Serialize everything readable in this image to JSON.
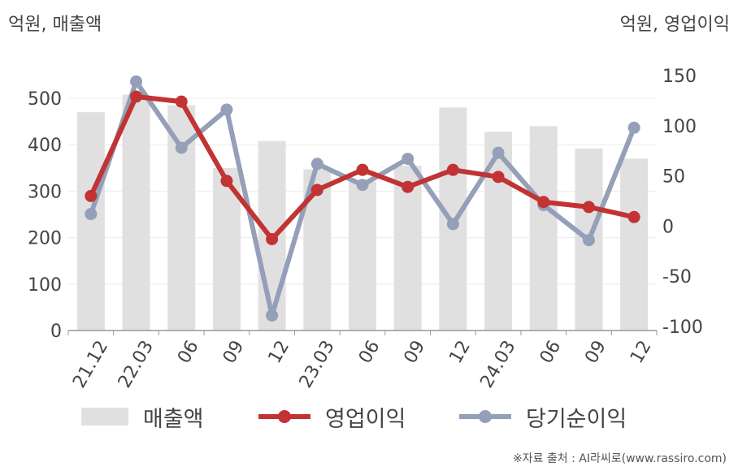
{
  "axis_unit_left": "억원, 매출액",
  "axis_unit_right": "억원, 영업이익",
  "source_note": "※자료 출처 : AI라씨로(www.rassiro.com)",
  "legend": {
    "sales": "매출액",
    "operating_profit": "영업이익",
    "net_income": "당기순이익"
  },
  "colors": {
    "sales": "#e0e0e0",
    "operating_profit": "#c23333",
    "net_income": "#949fb8",
    "grid": "#ececec",
    "axis_text": "#444444"
  },
  "chart_data": {
    "type": "bar+line",
    "categories": [
      "21.12",
      "22.03",
      "06",
      "09",
      "12",
      "23.03",
      "06",
      "09",
      "12",
      "24.03",
      "06",
      "09",
      "12"
    ],
    "left_axis": {
      "ylim": [
        0,
        500
      ],
      "ticks": [
        0,
        100,
        200,
        300,
        400,
        500
      ]
    },
    "right_axis": {
      "ylim": [
        -100,
        150
      ],
      "ticks": [
        -100,
        -50,
        0,
        50,
        100,
        150
      ]
    },
    "grid": true,
    "legend_position": "bottom",
    "series": [
      {
        "name": "매출액",
        "type": "bar",
        "axis": "left",
        "values": [
          470,
          508,
          485,
          350,
          408,
          347,
          320,
          355,
          480,
          428,
          440,
          392,
          370
        ]
      },
      {
        "name": "영업이익",
        "type": "line",
        "axis": "right",
        "values": [
          30,
          129,
          124,
          45,
          -13,
          36,
          56,
          39,
          56,
          49,
          24,
          19,
          9
        ]
      },
      {
        "name": "당기순이익",
        "type": "line",
        "axis": "right",
        "values": [
          12,
          144,
          78,
          116,
          -89,
          62,
          41,
          67,
          2,
          73,
          21,
          -14,
          98
        ]
      }
    ]
  }
}
